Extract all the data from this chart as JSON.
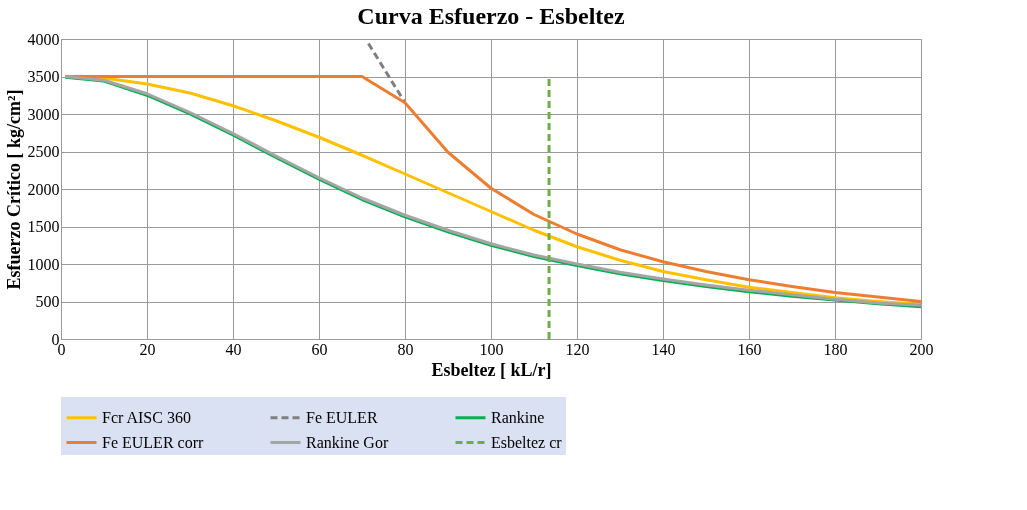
{
  "chart_data": {
    "type": "line",
    "title": "Curva Esfuerzo - Esbeltez",
    "xlabel": "Esbeltez       [ kL/r]",
    "ylabel": "Esfuerzo Crítico    [ kg/cm²]",
    "x": [
      1,
      10,
      20,
      30,
      40,
      50,
      60,
      70,
      80,
      90,
      100,
      110,
      120,
      130,
      140,
      150,
      160,
      170,
      180,
      190,
      200
    ],
    "series": [
      {
        "name": "Fcr AISC 360",
        "color": "#ffc000",
        "line_style": "solid",
        "values": [
          3500,
          3480,
          3400,
          3280,
          3110,
          2910,
          2690,
          2450,
          2200,
          1950,
          1700,
          1450,
          1230,
          1050,
          900,
          790,
          690,
          620,
          550,
          500,
          460
        ]
      },
      {
        "name": "Fe EULER",
        "color": "#7f7f7f",
        "line_style": "dashed",
        "x": [
          71.5,
          80
        ],
        "values": [
          3940,
          3150
        ]
      },
      {
        "name": "Rankine",
        "color": "#00b050",
        "line_style": "solid",
        "values": [
          3490,
          3440,
          3250,
          3000,
          2720,
          2420,
          2130,
          1860,
          1630,
          1430,
          1250,
          1100,
          980,
          870,
          780,
          700,
          630,
          570,
          520,
          470,
          430
        ]
      },
      {
        "name": "Fe EULER corr",
        "color": "#ed7d31",
        "line_style": "solid",
        "values": [
          3500,
          3500,
          3500,
          3500,
          3500,
          3500,
          3500,
          3500,
          3150,
          2490,
          2010,
          1660,
          1400,
          1190,
          1030,
          900,
          790,
          700,
          620,
          560,
          500
        ]
      },
      {
        "name": "Rankine Gor",
        "color": "#a5a5a5",
        "line_style": "solid",
        "values": [
          3500,
          3450,
          3270,
          3020,
          2740,
          2440,
          2150,
          1880,
          1650,
          1450,
          1270,
          1120,
          1000,
          890,
          800,
          720,
          650,
          590,
          530,
          480,
          450
        ]
      },
      {
        "name": "Esbeltez cr",
        "color": "#70ad47",
        "line_style": "dashed",
        "x": [
          113.5,
          113.5
        ],
        "values": [
          0,
          3500
        ]
      }
    ],
    "xlim": [
      0,
      200
    ],
    "xticks": [
      0,
      20,
      40,
      60,
      80,
      100,
      120,
      140,
      160,
      180,
      200
    ],
    "ylim": [
      0,
      4000
    ],
    "yticks": [
      0,
      500,
      1000,
      1500,
      2000,
      2500,
      3000,
      3500,
      4000
    ],
    "grid": true,
    "legend": "bottom",
    "marker": "none"
  }
}
